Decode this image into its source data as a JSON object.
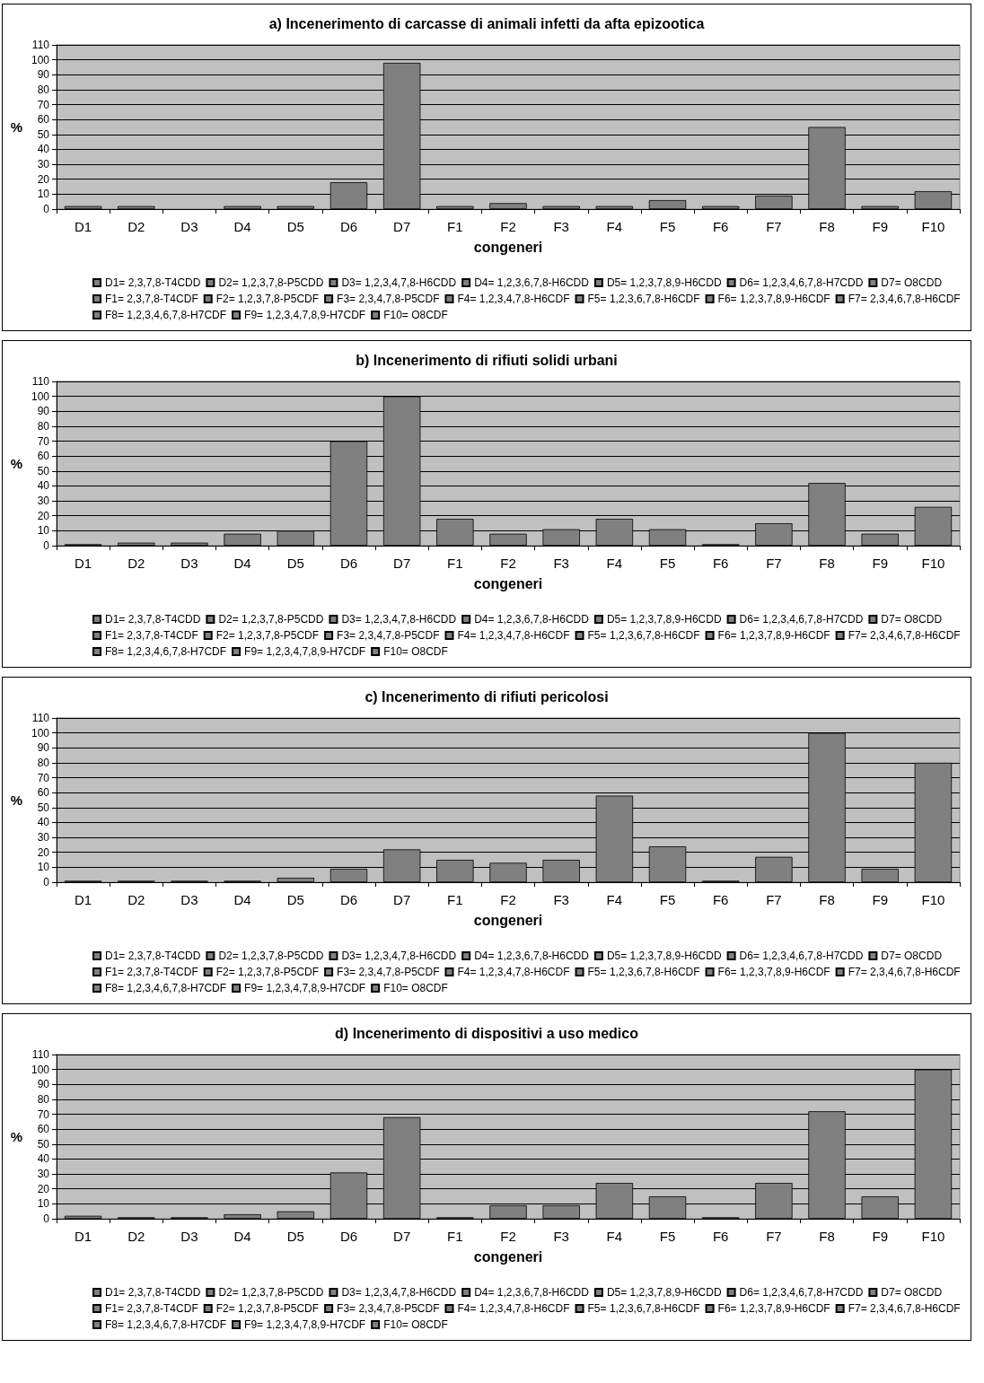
{
  "chart_data": [
    {
      "type": "bar",
      "title": "a) Incenerimento di carcasse di animali infetti da afta epizootica",
      "xlabel": "congeneri",
      "ylabel": "%",
      "categories": [
        "D1",
        "D2",
        "D3",
        "D4",
        "D5",
        "D6",
        "D7",
        "F1",
        "F2",
        "F3",
        "F4",
        "F5",
        "F6",
        "F7",
        "F8",
        "F9",
        "F10"
      ],
      "ylim": [
        0,
        110
      ],
      "yticks": [
        0,
        10,
        20,
        30,
        40,
        50,
        60,
        70,
        80,
        90,
        100,
        110
      ],
      "grid": "y",
      "legend": "bottom",
      "series": [
        {
          "name": "D1= 2,3,7,8-T4CDD",
          "color": "#808080",
          "values": [
            2,
            null,
            null,
            null,
            null,
            null,
            null,
            null,
            null,
            null,
            null,
            null,
            null,
            null,
            null,
            null,
            null
          ]
        },
        {
          "name": "D2= 1,2,3,7,8-P5CDD",
          "color": "#808080",
          "values": [
            null,
            2,
            null,
            null,
            null,
            null,
            null,
            null,
            null,
            null,
            null,
            null,
            null,
            null,
            null,
            null,
            null
          ]
        },
        {
          "name": "D3= 1,2,3,4,7,8-H6CDD",
          "color": "#808080",
          "values": [
            null,
            null,
            null,
            null,
            null,
            null,
            null,
            null,
            null,
            null,
            null,
            null,
            null,
            null,
            null,
            null,
            null
          ]
        },
        {
          "name": "D4= 1,2,3,6,7,8-H6CDD",
          "color": "#808080",
          "values": [
            null,
            null,
            null,
            2,
            null,
            null,
            null,
            null,
            null,
            null,
            null,
            null,
            null,
            null,
            null,
            null,
            null
          ]
        },
        {
          "name": "D5= 1,2,3,7,8,9-H6CDD",
          "color": "#808080",
          "values": [
            null,
            null,
            null,
            null,
            2,
            null,
            null,
            null,
            null,
            null,
            null,
            null,
            null,
            null,
            null,
            null,
            null
          ]
        },
        {
          "name": "D6= 1,2,3,4,6,7,8-H7CDD",
          "color": "#808080",
          "values": [
            null,
            null,
            null,
            null,
            null,
            18,
            null,
            null,
            null,
            null,
            null,
            null,
            null,
            null,
            null,
            null,
            null
          ]
        },
        {
          "name": "D7= O8CDD",
          "color": "#808080",
          "values": [
            null,
            null,
            null,
            null,
            null,
            null,
            98,
            null,
            null,
            null,
            null,
            null,
            null,
            null,
            null,
            null,
            null
          ]
        },
        {
          "name": "F1= 2,3,7,8-T4CDF",
          "color": "#808080",
          "values": [
            null,
            null,
            null,
            null,
            null,
            null,
            null,
            2,
            null,
            null,
            null,
            null,
            null,
            null,
            null,
            null,
            null
          ]
        },
        {
          "name": "F2= 1,2,3,7,8-P5CDF",
          "color": "#808080",
          "values": [
            null,
            null,
            null,
            null,
            null,
            null,
            null,
            null,
            4,
            null,
            null,
            null,
            null,
            null,
            null,
            null,
            null
          ]
        },
        {
          "name": "F3= 2,3,4,7,8-P5CDF",
          "color": "#808080",
          "values": [
            null,
            null,
            null,
            null,
            null,
            null,
            null,
            null,
            null,
            2,
            null,
            null,
            null,
            null,
            null,
            null,
            null
          ]
        },
        {
          "name": "F4= 1,2,3,4,7,8-H6CDF",
          "color": "#808080",
          "values": [
            null,
            null,
            null,
            null,
            null,
            null,
            null,
            null,
            null,
            null,
            2,
            null,
            null,
            null,
            null,
            null,
            null
          ]
        },
        {
          "name": "F5= 1,2,3,6,7,8-H6CDF",
          "color": "#808080",
          "values": [
            null,
            null,
            null,
            null,
            null,
            null,
            null,
            null,
            null,
            null,
            null,
            6,
            null,
            null,
            null,
            null,
            null
          ]
        },
        {
          "name": "F6= 1,2,3,7,8,9-H6CDF",
          "color": "#808080",
          "values": [
            null,
            null,
            null,
            null,
            null,
            null,
            null,
            null,
            null,
            null,
            null,
            null,
            2,
            null,
            null,
            null,
            null
          ]
        },
        {
          "name": "F7= 2,3,4,6,7,8-H6CDF",
          "color": "#808080",
          "values": [
            null,
            null,
            null,
            null,
            null,
            null,
            null,
            null,
            null,
            null,
            null,
            null,
            null,
            9,
            null,
            null,
            null
          ]
        },
        {
          "name": "F8= 1,2,3,4,6,7,8-H7CDF",
          "color": "#808080",
          "values": [
            null,
            null,
            null,
            null,
            null,
            null,
            null,
            null,
            null,
            null,
            null,
            null,
            null,
            null,
            55,
            null,
            null
          ]
        },
        {
          "name": "F9= 1,2,3,4,7,8,9-H7CDF",
          "color": "#808080",
          "values": [
            null,
            null,
            null,
            null,
            null,
            null,
            null,
            null,
            null,
            null,
            null,
            null,
            null,
            null,
            null,
            2,
            null
          ]
        },
        {
          "name": "F10= O8CDF",
          "color": "#808080",
          "values": [
            null,
            null,
            null,
            null,
            null,
            null,
            null,
            null,
            null,
            null,
            null,
            null,
            null,
            null,
            null,
            null,
            12
          ]
        }
      ]
    },
    {
      "type": "bar",
      "title": "b) Incenerimento di rifiuti solidi urbani",
      "xlabel": "congeneri",
      "ylabel": "%",
      "categories": [
        "D1",
        "D2",
        "D3",
        "D4",
        "D5",
        "D6",
        "D7",
        "F1",
        "F2",
        "F3",
        "F4",
        "F5",
        "F6",
        "F7",
        "F8",
        "F9",
        "F10"
      ],
      "ylim": [
        0,
        110
      ],
      "yticks": [
        0,
        10,
        20,
        30,
        40,
        50,
        60,
        70,
        80,
        90,
        100,
        110
      ],
      "grid": "y",
      "legend": "bottom",
      "series": [
        {
          "name": "D1= 2,3,7,8-T4CDD",
          "color": "#808080",
          "values": [
            1,
            null,
            null,
            null,
            null,
            null,
            null,
            null,
            null,
            null,
            null,
            null,
            null,
            null,
            null,
            null,
            null
          ]
        },
        {
          "name": "D2= 1,2,3,7,8-P5CDD",
          "color": "#808080",
          "values": [
            null,
            2,
            null,
            null,
            null,
            null,
            null,
            null,
            null,
            null,
            null,
            null,
            null,
            null,
            null,
            null,
            null
          ]
        },
        {
          "name": "D3= 1,2,3,4,7,8-H6CDD",
          "color": "#808080",
          "values": [
            null,
            null,
            2,
            null,
            null,
            null,
            null,
            null,
            null,
            null,
            null,
            null,
            null,
            null,
            null,
            null,
            null
          ]
        },
        {
          "name": "D4= 1,2,3,6,7,8-H6CDD",
          "color": "#808080",
          "values": [
            null,
            null,
            null,
            8,
            null,
            null,
            null,
            null,
            null,
            null,
            null,
            null,
            null,
            null,
            null,
            null,
            null
          ]
        },
        {
          "name": "D5= 1,2,3,7,8,9-H6CDD",
          "color": "#808080",
          "values": [
            null,
            null,
            null,
            null,
            10,
            null,
            null,
            null,
            null,
            null,
            null,
            null,
            null,
            null,
            null,
            null,
            null
          ]
        },
        {
          "name": "D6= 1,2,3,4,6,7,8-H7CDD",
          "color": "#808080",
          "values": [
            null,
            null,
            null,
            null,
            null,
            70,
            null,
            null,
            null,
            null,
            null,
            null,
            null,
            null,
            null,
            null,
            null
          ]
        },
        {
          "name": "D7= O8CDD",
          "color": "#808080",
          "values": [
            null,
            null,
            null,
            null,
            null,
            null,
            100,
            null,
            null,
            null,
            null,
            null,
            null,
            null,
            null,
            null,
            null
          ]
        },
        {
          "name": "F1= 2,3,7,8-T4CDF",
          "color": "#808080",
          "values": [
            null,
            null,
            null,
            null,
            null,
            null,
            null,
            18,
            null,
            null,
            null,
            null,
            null,
            null,
            null,
            null,
            null
          ]
        },
        {
          "name": "F2= 1,2,3,7,8-P5CDF",
          "color": "#808080",
          "values": [
            null,
            null,
            null,
            null,
            null,
            null,
            null,
            null,
            8,
            null,
            null,
            null,
            null,
            null,
            null,
            null,
            null
          ]
        },
        {
          "name": "F3= 2,3,4,7,8-P5CDF",
          "color": "#808080",
          "values": [
            null,
            null,
            null,
            null,
            null,
            null,
            null,
            null,
            null,
            11,
            null,
            null,
            null,
            null,
            null,
            null,
            null
          ]
        },
        {
          "name": "F4= 1,2,3,4,7,8-H6CDF",
          "color": "#808080",
          "values": [
            null,
            null,
            null,
            null,
            null,
            null,
            null,
            null,
            null,
            null,
            18,
            null,
            null,
            null,
            null,
            null,
            null
          ]
        },
        {
          "name": "F5= 1,2,3,6,7,8-H6CDF",
          "color": "#808080",
          "values": [
            null,
            null,
            null,
            null,
            null,
            null,
            null,
            null,
            null,
            null,
            null,
            11,
            null,
            null,
            null,
            null,
            null
          ]
        },
        {
          "name": "F6= 1,2,3,7,8,9-H6CDF",
          "color": "#808080",
          "values": [
            null,
            null,
            null,
            null,
            null,
            null,
            null,
            null,
            null,
            null,
            null,
            null,
            1,
            null,
            null,
            null,
            null
          ]
        },
        {
          "name": "F7= 2,3,4,6,7,8-H6CDF",
          "color": "#808080",
          "values": [
            null,
            null,
            null,
            null,
            null,
            null,
            null,
            null,
            null,
            null,
            null,
            null,
            null,
            15,
            null,
            null,
            null
          ]
        },
        {
          "name": "F8= 1,2,3,4,6,7,8-H7CDF",
          "color": "#808080",
          "values": [
            null,
            null,
            null,
            null,
            null,
            null,
            null,
            null,
            null,
            null,
            null,
            null,
            null,
            null,
            42,
            null,
            null
          ]
        },
        {
          "name": "F9= 1,2,3,4,7,8,9-H7CDF",
          "color": "#808080",
          "values": [
            null,
            null,
            null,
            null,
            null,
            null,
            null,
            null,
            null,
            null,
            null,
            null,
            null,
            null,
            null,
            8,
            null
          ]
        },
        {
          "name": "F10= O8CDF",
          "color": "#808080",
          "values": [
            null,
            null,
            null,
            null,
            null,
            null,
            null,
            null,
            null,
            null,
            null,
            null,
            null,
            null,
            null,
            null,
            26
          ]
        }
      ]
    },
    {
      "type": "bar",
      "title": "c) Incenerimento di rifiuti pericolosi",
      "xlabel": "congeneri",
      "ylabel": "%",
      "categories": [
        "D1",
        "D2",
        "D3",
        "D4",
        "D5",
        "D6",
        "D7",
        "F1",
        "F2",
        "F3",
        "F4",
        "F5",
        "F6",
        "F7",
        "F8",
        "F9",
        "F10"
      ],
      "ylim": [
        0,
        110
      ],
      "yticks": [
        0,
        10,
        20,
        30,
        40,
        50,
        60,
        70,
        80,
        90,
        100,
        110
      ],
      "grid": "y",
      "legend": "bottom",
      "series": [
        {
          "name": "D1= 2,3,7,8-T4CDD",
          "color": "#808080",
          "values": [
            1,
            null,
            null,
            null,
            null,
            null,
            null,
            null,
            null,
            null,
            null,
            null,
            null,
            null,
            null,
            null,
            null
          ]
        },
        {
          "name": "D2= 1,2,3,7,8-P5CDD",
          "color": "#808080",
          "values": [
            null,
            1,
            null,
            null,
            null,
            null,
            null,
            null,
            null,
            null,
            null,
            null,
            null,
            null,
            null,
            null,
            null
          ]
        },
        {
          "name": "D3= 1,2,3,4,7,8-H6CDD",
          "color": "#808080",
          "values": [
            null,
            null,
            1,
            null,
            null,
            null,
            null,
            null,
            null,
            null,
            null,
            null,
            null,
            null,
            null,
            null,
            null
          ]
        },
        {
          "name": "D4= 1,2,3,6,7,8-H6CDD",
          "color": "#808080",
          "values": [
            null,
            null,
            null,
            1,
            null,
            null,
            null,
            null,
            null,
            null,
            null,
            null,
            null,
            null,
            null,
            null,
            null
          ]
        },
        {
          "name": "D5= 1,2,3,7,8,9-H6CDD",
          "color": "#808080",
          "values": [
            null,
            null,
            null,
            null,
            3,
            null,
            null,
            null,
            null,
            null,
            null,
            null,
            null,
            null,
            null,
            null,
            null
          ]
        },
        {
          "name": "D6= 1,2,3,4,6,7,8-H7CDD",
          "color": "#808080",
          "values": [
            null,
            null,
            null,
            null,
            null,
            9,
            null,
            null,
            null,
            null,
            null,
            null,
            null,
            null,
            null,
            null,
            null
          ]
        },
        {
          "name": "D7= O8CDD",
          "color": "#808080",
          "values": [
            null,
            null,
            null,
            null,
            null,
            null,
            22,
            null,
            null,
            null,
            null,
            null,
            null,
            null,
            null,
            null,
            null
          ]
        },
        {
          "name": "F1= 2,3,7,8-T4CDF",
          "color": "#808080",
          "values": [
            null,
            null,
            null,
            null,
            null,
            null,
            null,
            15,
            null,
            null,
            null,
            null,
            null,
            null,
            null,
            null,
            null
          ]
        },
        {
          "name": "F2= 1,2,3,7,8-P5CDF",
          "color": "#808080",
          "values": [
            null,
            null,
            null,
            null,
            null,
            null,
            null,
            null,
            13,
            null,
            null,
            null,
            null,
            null,
            null,
            null,
            null
          ]
        },
        {
          "name": "F3= 2,3,4,7,8-P5CDF",
          "color": "#808080",
          "values": [
            null,
            null,
            null,
            null,
            null,
            null,
            null,
            null,
            null,
            15,
            null,
            null,
            null,
            null,
            null,
            null,
            null
          ]
        },
        {
          "name": "F4= 1,2,3,4,7,8-H6CDF",
          "color": "#808080",
          "values": [
            null,
            null,
            null,
            null,
            null,
            null,
            null,
            null,
            null,
            null,
            58,
            null,
            null,
            null,
            null,
            null,
            null
          ]
        },
        {
          "name": "F5= 1,2,3,6,7,8-H6CDF",
          "color": "#808080",
          "values": [
            null,
            null,
            null,
            null,
            null,
            null,
            null,
            null,
            null,
            null,
            null,
            24,
            null,
            null,
            null,
            null,
            null
          ]
        },
        {
          "name": "F6= 1,2,3,7,8,9-H6CDF",
          "color": "#808080",
          "values": [
            null,
            null,
            null,
            null,
            null,
            null,
            null,
            null,
            null,
            null,
            null,
            null,
            1,
            null,
            null,
            null,
            null
          ]
        },
        {
          "name": "F7= 2,3,4,6,7,8-H6CDF",
          "color": "#808080",
          "values": [
            null,
            null,
            null,
            null,
            null,
            null,
            null,
            null,
            null,
            null,
            null,
            null,
            null,
            17,
            null,
            null,
            null
          ]
        },
        {
          "name": "F8= 1,2,3,4,6,7,8-H7CDF",
          "color": "#808080",
          "values": [
            null,
            null,
            null,
            null,
            null,
            null,
            null,
            null,
            null,
            null,
            null,
            null,
            null,
            null,
            100,
            null,
            null
          ]
        },
        {
          "name": "F9= 1,2,3,4,7,8,9-H7CDF",
          "color": "#808080",
          "values": [
            null,
            null,
            null,
            null,
            null,
            null,
            null,
            null,
            null,
            null,
            null,
            null,
            null,
            null,
            null,
            9,
            null
          ]
        },
        {
          "name": "F10= O8CDF",
          "color": "#808080",
          "values": [
            null,
            null,
            null,
            null,
            null,
            null,
            null,
            null,
            null,
            null,
            null,
            null,
            null,
            null,
            null,
            null,
            80
          ]
        }
      ]
    },
    {
      "type": "bar",
      "title": "d) Incenerimento di dispositivi a uso medico",
      "xlabel": "congeneri",
      "ylabel": "%",
      "categories": [
        "D1",
        "D2",
        "D3",
        "D4",
        "D5",
        "D6",
        "D7",
        "F1",
        "F2",
        "F3",
        "F4",
        "F5",
        "F6",
        "F7",
        "F8",
        "F9",
        "F10"
      ],
      "ylim": [
        0,
        110
      ],
      "yticks": [
        0,
        10,
        20,
        30,
        40,
        50,
        60,
        70,
        80,
        90,
        100,
        110
      ],
      "grid": "y",
      "legend": "bottom",
      "series": [
        {
          "name": "D1= 2,3,7,8-T4CDD",
          "color": "#808080",
          "values": [
            2,
            null,
            null,
            null,
            null,
            null,
            null,
            null,
            null,
            null,
            null,
            null,
            null,
            null,
            null,
            null,
            null
          ]
        },
        {
          "name": "D2= 1,2,3,7,8-P5CDD",
          "color": "#808080",
          "values": [
            null,
            1,
            null,
            null,
            null,
            null,
            null,
            null,
            null,
            null,
            null,
            null,
            null,
            null,
            null,
            null,
            null
          ]
        },
        {
          "name": "D3= 1,2,3,4,7,8-H6CDD",
          "color": "#808080",
          "values": [
            null,
            null,
            1,
            null,
            null,
            null,
            null,
            null,
            null,
            null,
            null,
            null,
            null,
            null,
            null,
            null,
            null
          ]
        },
        {
          "name": "D4= 1,2,3,6,7,8-H6CDD",
          "color": "#808080",
          "values": [
            null,
            null,
            null,
            3,
            null,
            null,
            null,
            null,
            null,
            null,
            null,
            null,
            null,
            null,
            null,
            null,
            null
          ]
        },
        {
          "name": "D5= 1,2,3,7,8,9-H6CDD",
          "color": "#808080",
          "values": [
            null,
            null,
            null,
            null,
            5,
            null,
            null,
            null,
            null,
            null,
            null,
            null,
            null,
            null,
            null,
            null,
            null
          ]
        },
        {
          "name": "D6= 1,2,3,4,6,7,8-H7CDD",
          "color": "#808080",
          "values": [
            null,
            null,
            null,
            null,
            null,
            31,
            null,
            null,
            null,
            null,
            null,
            null,
            null,
            null,
            null,
            null,
            null
          ]
        },
        {
          "name": "D7= O8CDD",
          "color": "#808080",
          "values": [
            null,
            null,
            null,
            null,
            null,
            null,
            68,
            null,
            null,
            null,
            null,
            null,
            null,
            null,
            null,
            null,
            null
          ]
        },
        {
          "name": "F1= 2,3,7,8-T4CDF",
          "color": "#808080",
          "values": [
            null,
            null,
            null,
            null,
            null,
            null,
            null,
            1,
            null,
            null,
            null,
            null,
            null,
            null,
            null,
            null,
            null
          ]
        },
        {
          "name": "F2= 1,2,3,7,8-P5CDF",
          "color": "#808080",
          "values": [
            null,
            null,
            null,
            null,
            null,
            null,
            null,
            null,
            9,
            null,
            null,
            null,
            null,
            null,
            null,
            null,
            null
          ]
        },
        {
          "name": "F3= 2,3,4,7,8-P5CDF",
          "color": "#808080",
          "values": [
            null,
            null,
            null,
            null,
            null,
            null,
            null,
            null,
            null,
            9,
            null,
            null,
            null,
            null,
            null,
            null,
            null
          ]
        },
        {
          "name": "F4= 1,2,3,4,7,8-H6CDF",
          "color": "#808080",
          "values": [
            null,
            null,
            null,
            null,
            null,
            null,
            null,
            null,
            null,
            null,
            24,
            null,
            null,
            null,
            null,
            null,
            null
          ]
        },
        {
          "name": "F5= 1,2,3,6,7,8-H6CDF",
          "color": "#808080",
          "values": [
            null,
            null,
            null,
            null,
            null,
            null,
            null,
            null,
            null,
            null,
            null,
            15,
            null,
            null,
            null,
            null,
            null
          ]
        },
        {
          "name": "F6= 1,2,3,7,8,9-H6CDF",
          "color": "#808080",
          "values": [
            null,
            null,
            null,
            null,
            null,
            null,
            null,
            null,
            null,
            null,
            null,
            null,
            1,
            null,
            null,
            null,
            null
          ]
        },
        {
          "name": "F7= 2,3,4,6,7,8-H6CDF",
          "color": "#808080",
          "values": [
            null,
            null,
            null,
            null,
            null,
            null,
            null,
            null,
            null,
            null,
            null,
            null,
            null,
            24,
            null,
            null,
            null
          ]
        },
        {
          "name": "F8= 1,2,3,4,6,7,8-H7CDF",
          "color": "#808080",
          "values": [
            null,
            null,
            null,
            null,
            null,
            null,
            null,
            null,
            null,
            null,
            null,
            null,
            null,
            null,
            72,
            null,
            null
          ]
        },
        {
          "name": "F9= 1,2,3,4,7,8,9-H7CDF",
          "color": "#808080",
          "values": [
            null,
            null,
            null,
            null,
            null,
            null,
            null,
            null,
            null,
            null,
            null,
            null,
            null,
            null,
            null,
            15,
            null
          ]
        },
        {
          "name": "F10= O8CDF",
          "color": "#808080",
          "values": [
            null,
            null,
            null,
            null,
            null,
            null,
            null,
            null,
            null,
            null,
            null,
            null,
            null,
            null,
            null,
            null,
            100
          ]
        }
      ]
    }
  ]
}
